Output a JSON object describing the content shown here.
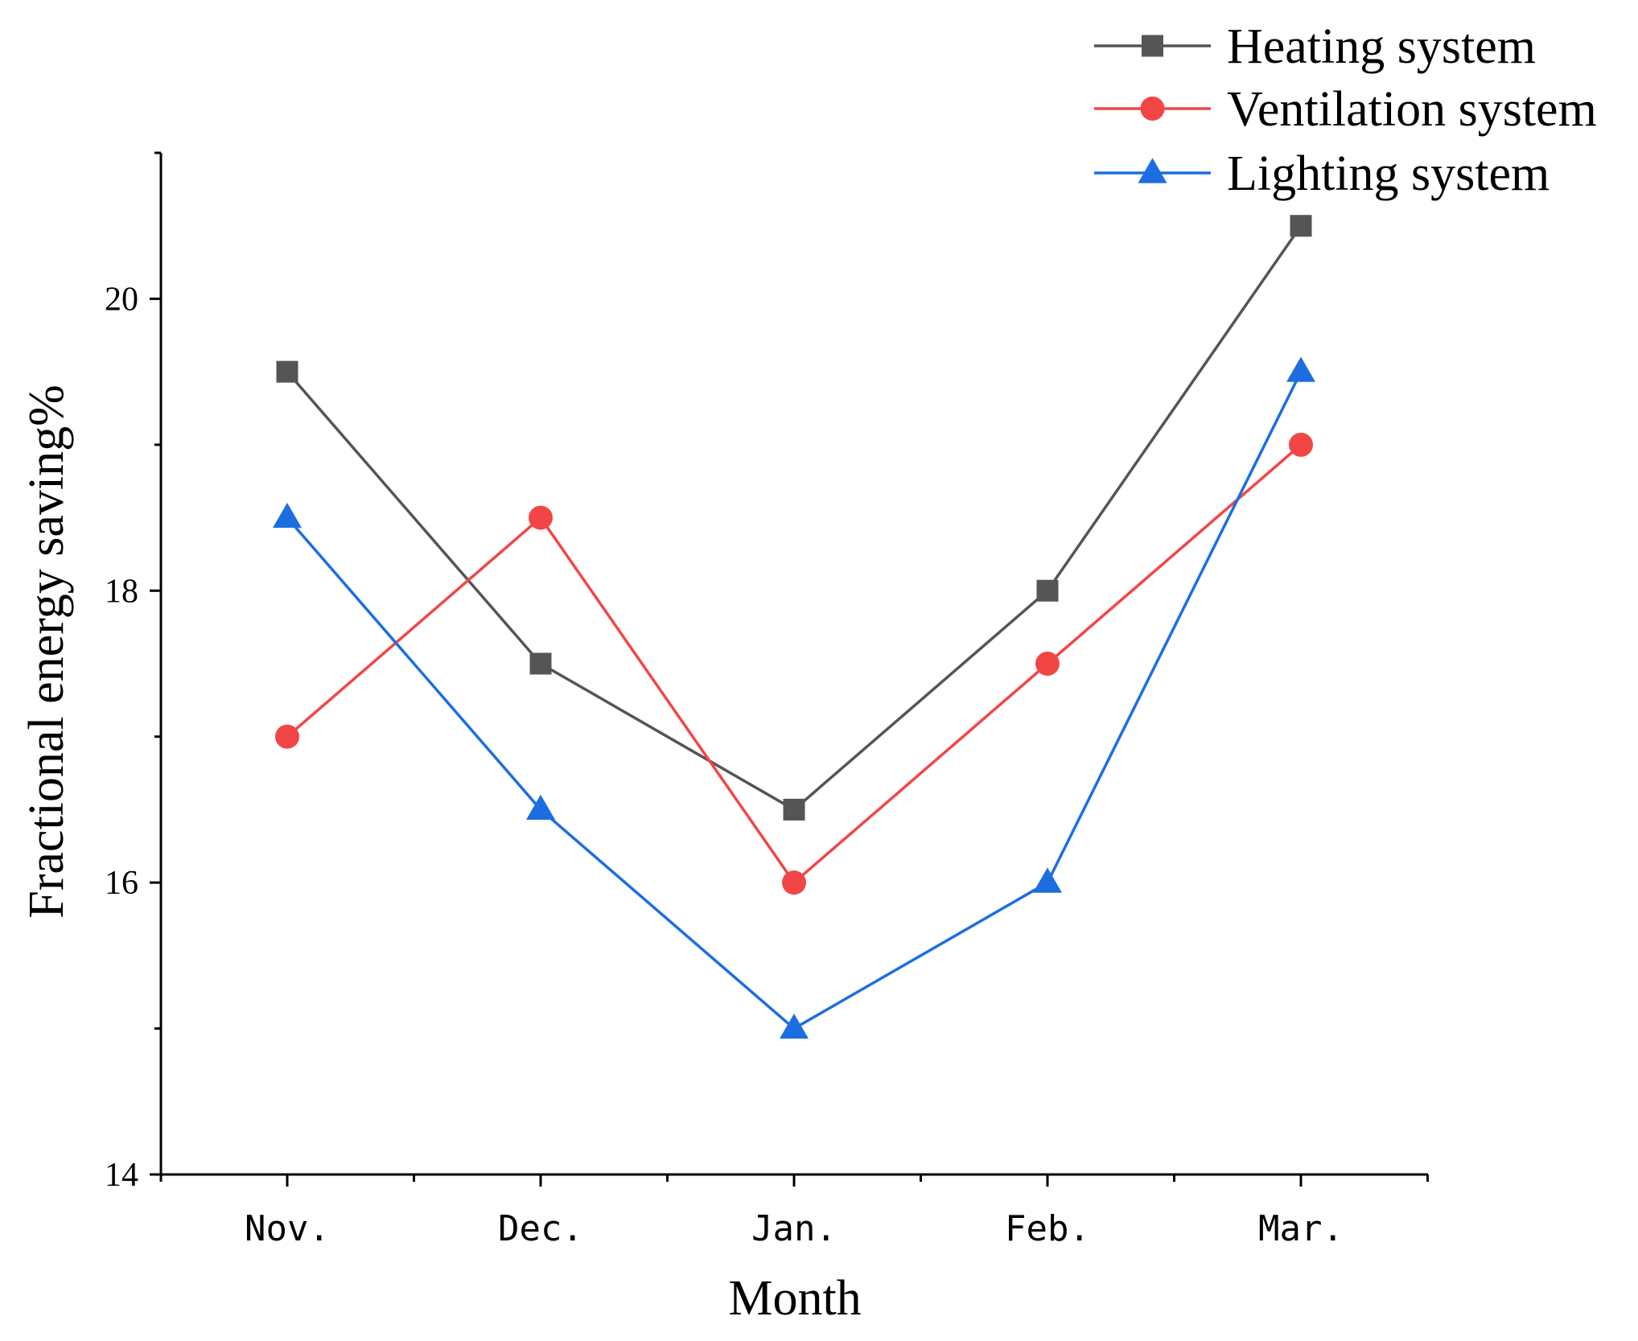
{
  "chart_data": {
    "type": "line",
    "title": "",
    "xlabel": "Month",
    "ylabel": "Fractional energy saving%",
    "categories": [
      "Nov.",
      "Dec.",
      "Jan.",
      "Feb.",
      "Mar."
    ],
    "ylim": [
      14,
      21
    ],
    "yticks": [
      14,
      16,
      18,
      20
    ],
    "y_minor_ticks": [
      15,
      17,
      19,
      21
    ],
    "grid": false,
    "legend_position": "top-right",
    "series": [
      {
        "name": "Heating system",
        "marker": "square",
        "color": "#555555",
        "values": [
          19.5,
          17.5,
          16.5,
          18.0,
          20.5
        ]
      },
      {
        "name": "Ventilation system",
        "marker": "circle",
        "color": "#f24646",
        "values": [
          17.0,
          18.5,
          16.0,
          17.5,
          19.0
        ]
      },
      {
        "name": "Lighting system",
        "marker": "triangle",
        "color": "#1c6ee0",
        "values": [
          18.5,
          16.5,
          15.0,
          16.0,
          19.5
        ]
      }
    ]
  }
}
